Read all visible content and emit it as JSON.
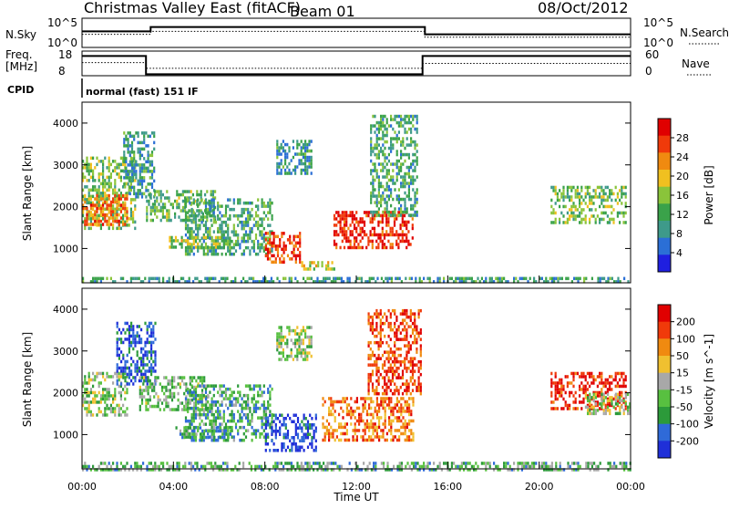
{
  "header": {
    "station": "Christmas Valley East (fitACF)",
    "beam": "Beam 01",
    "date": "08/Oct/2012"
  },
  "params": {
    "nsky_label": "N.Sky",
    "nsearch_label": "N.Search",
    "noise_ticks": [
      "10^5",
      "10^0"
    ],
    "freq_label_1": "Freq.",
    "freq_label_2": "[MHz]",
    "freq_ticks": [
      "18",
      "8"
    ],
    "nave_label": "Nave",
    "nave_ticks": [
      "60",
      "0"
    ],
    "cpid_label": "CPID",
    "cpid_text": "normal (fast) 151 IF"
  },
  "chart_data": [
    {
      "type": "line",
      "panel": "noise",
      "series": [
        {
          "name": "N.Sky",
          "x": [
            0,
            3,
            3,
            15,
            15,
            24
          ],
          "y": [
            0.55,
            0.55,
            0.7,
            0.7,
            0.45,
            0.45
          ]
        },
        {
          "name": "N.Search",
          "x": [
            0,
            3,
            3,
            15,
            15,
            24
          ],
          "y": [
            0.45,
            0.45,
            0.55,
            0.55,
            0.35,
            0.35
          ]
        }
      ]
    },
    {
      "type": "line",
      "panel": "freq_nave",
      "series": [
        {
          "name": "Freq.",
          "x": [
            0,
            2.8,
            2.8,
            14.9,
            14.9,
            24
          ],
          "y": [
            16,
            16,
            8.6,
            8.6,
            16,
            16
          ]
        },
        {
          "name": "Nave",
          "x": [
            0,
            2.8,
            2.8,
            14.9,
            14.9,
            24
          ],
          "y": [
            32,
            32,
            18,
            18,
            30,
            30
          ]
        }
      ]
    },
    {
      "type": "heatmap",
      "panel": "power",
      "ylabel": "Slant Range [km]",
      "ylim": [
        180,
        4500
      ],
      "yticks": [
        "1000",
        "2000",
        "3000",
        "4000"
      ],
      "colorbar": {
        "label": "Power [dB]",
        "ticks": [
          "28",
          "24",
          "20",
          "16",
          "12",
          "8",
          "4"
        ],
        "colors": [
          "#1f1fe0",
          "#2b6fd6",
          "#3e9a8a",
          "#3aa24a",
          "#8ac43a",
          "#f0c020",
          "#f08a10",
          "#f03a0a",
          "#e00000"
        ]
      },
      "regions": [
        {
          "t": [
            0.0,
            2.3
          ],
          "r": [
            1500,
            3200
          ],
          "level": 0.45
        },
        {
          "t": [
            1.8,
            3.2
          ],
          "r": [
            2200,
            3800
          ],
          "level": 0.3
        },
        {
          "t": [
            0.0,
            2.0
          ],
          "r": [
            1600,
            2300
          ],
          "level": 0.75
        },
        {
          "t": [
            2.8,
            5.8
          ],
          "r": [
            1700,
            2400
          ],
          "level": 0.4
        },
        {
          "t": [
            4.5,
            8.3
          ],
          "r": [
            900,
            2200
          ],
          "level": 0.35
        },
        {
          "t": [
            3.8,
            6.5
          ],
          "r": [
            1000,
            1300
          ],
          "level": 0.5
        },
        {
          "t": [
            8.0,
            9.5
          ],
          "r": [
            700,
            1400
          ],
          "level": 0.85
        },
        {
          "t": [
            8.5,
            10.0
          ],
          "r": [
            2800,
            3600
          ],
          "level": 0.3
        },
        {
          "t": [
            11.0,
            14.5
          ],
          "r": [
            1000,
            1900
          ],
          "level": 0.9
        },
        {
          "t": [
            12.6,
            14.7
          ],
          "r": [
            1800,
            4200
          ],
          "level": 0.35
        },
        {
          "t": [
            9.5,
            11.0
          ],
          "r": [
            500,
            700
          ],
          "level": 0.55
        },
        {
          "t": [
            20.5,
            23.8
          ],
          "r": [
            1600,
            2500
          ],
          "level": 0.45
        },
        {
          "t": [
            0.0,
            24.0
          ],
          "r": [
            180,
            320
          ],
          "level": 0.3
        }
      ]
    },
    {
      "type": "heatmap",
      "panel": "velocity",
      "ylabel": "Slant Range [km]",
      "ylim": [
        180,
        4500
      ],
      "yticks": [
        "1000",
        "2000",
        "3000",
        "4000"
      ],
      "xlabel": "Time UT",
      "xticks": [
        "00:00",
        "04:00",
        "08:00",
        "12:00",
        "16:00",
        "20:00",
        "00:00"
      ],
      "colorbar": {
        "label": "Velocity [m s^-1]",
        "ticks": [
          "200",
          "100",
          "50",
          "15",
          "-15",
          "-50",
          "-100",
          "-200"
        ],
        "colors": [
          "#1f2fd8",
          "#2f6ad8",
          "#2c9a3a",
          "#58c040",
          "#a8a8a8",
          "#f0c030",
          "#f08a10",
          "#f03a0a",
          "#e00000"
        ]
      },
      "regions": [
        {
          "t": [
            0.0,
            2.0
          ],
          "r": [
            1500,
            2500
          ],
          "level": 0.45
        },
        {
          "t": [
            1.5,
            3.2
          ],
          "r": [
            2200,
            3700
          ],
          "level": 0.15
        },
        {
          "t": [
            2.5,
            5.5
          ],
          "r": [
            1600,
            2400
          ],
          "level": 0.4
        },
        {
          "t": [
            4.5,
            8.3
          ],
          "r": [
            900,
            2200
          ],
          "level": 0.3
        },
        {
          "t": [
            4.0,
            6.5
          ],
          "r": [
            900,
            1200
          ],
          "level": 0.3
        },
        {
          "t": [
            8.0,
            10.2
          ],
          "r": [
            600,
            1500
          ],
          "level": 0.1
        },
        {
          "t": [
            10.5,
            14.5
          ],
          "r": [
            900,
            1900
          ],
          "level": 0.75
        },
        {
          "t": [
            12.5,
            14.8
          ],
          "r": [
            2000,
            4000
          ],
          "level": 0.85
        },
        {
          "t": [
            8.5,
            10.0
          ],
          "r": [
            2800,
            3600
          ],
          "level": 0.45
        },
        {
          "t": [
            20.5,
            23.8
          ],
          "r": [
            1600,
            2500
          ],
          "level": 0.9
        },
        {
          "t": [
            22.0,
            24.0
          ],
          "r": [
            1500,
            2000
          ],
          "level": 0.45
        },
        {
          "t": [
            0.0,
            24.0
          ],
          "r": [
            180,
            350
          ],
          "level": 0.35
        }
      ]
    }
  ]
}
